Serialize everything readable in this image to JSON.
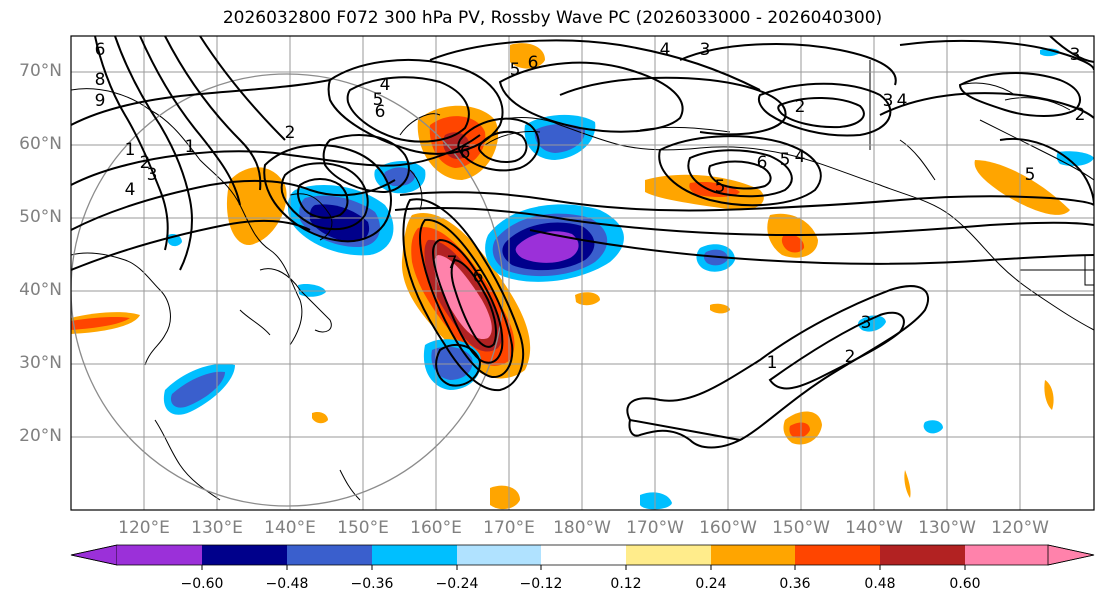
{
  "title": "2026032800 F072 300 hPa PV, Rossby Wave PC (2026033000 - 2026040300)",
  "lat_labels": [
    "70°N",
    "60°N",
    "50°N",
    "40°N",
    "30°N",
    "20°N"
  ],
  "lon_labels": [
    "120°E",
    "130°E",
    "140°E",
    "150°E",
    "160°E",
    "170°E",
    "180°W",
    "170°W",
    "160°W",
    "150°W",
    "140°W",
    "130°W",
    "120°W"
  ],
  "colorbar": {
    "ticks": [
      "−0.60",
      "−0.48",
      "−0.36",
      "−0.24",
      "−0.12",
      "0.12",
      "0.24",
      "0.36",
      "0.48",
      "0.60"
    ],
    "colors": [
      "#9b30d9",
      "#00008b",
      "#3a5fcd",
      "#00bfff",
      "#b0e2ff",
      "#ffffff",
      "#ffec8b",
      "#ffa500",
      "#ff4500",
      "#b22222",
      "#ff82ab"
    ]
  },
  "contour_labels": [
    "1",
    "2",
    "3",
    "4",
    "5",
    "6",
    "7",
    "8",
    "9"
  ]
}
